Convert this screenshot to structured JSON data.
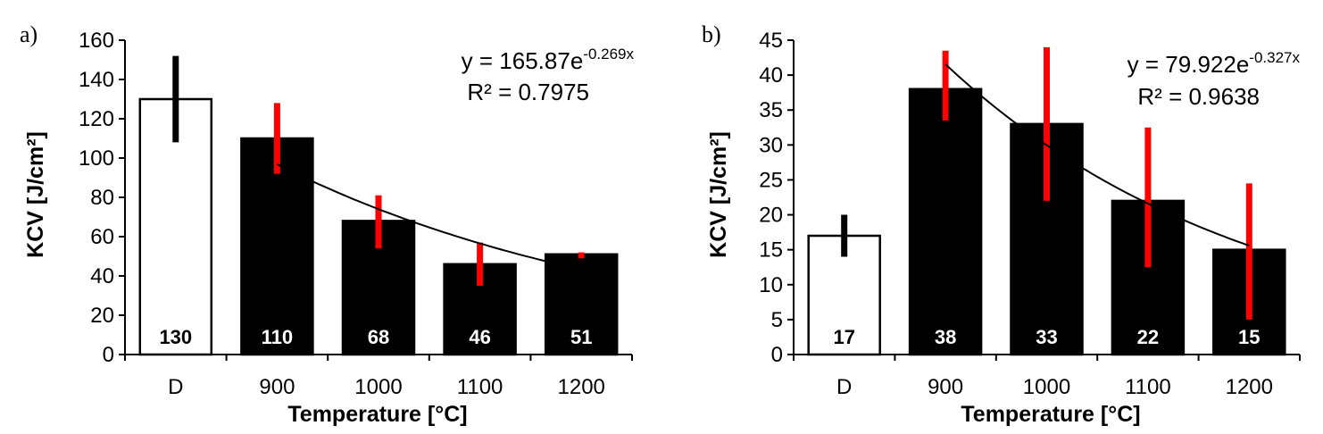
{
  "chart_data": [
    {
      "panel_label": "a)",
      "type": "bar",
      "categories": [
        "D",
        "900",
        "1000",
        "1100",
        "1200"
      ],
      "values": [
        130,
        110,
        68,
        46,
        51
      ],
      "value_labels": [
        "130",
        "110",
        "68",
        "46",
        "51"
      ],
      "error_low": [
        108,
        92,
        54,
        35,
        49
      ],
      "error_high": [
        152,
        128,
        81,
        57,
        52
      ],
      "bar_fill": [
        "#ffffff",
        "#000000",
        "#000000",
        "#000000",
        "#000000"
      ],
      "error_color": [
        "#000000",
        "#ff0000",
        "#ff0000",
        "#ff0000",
        "#ff0000"
      ],
      "label_color": [
        "#000000",
        "#ffffff",
        "#ffffff",
        "#ffffff",
        "#ffffff"
      ],
      "trend": {
        "a": 165.87,
        "b": -0.269,
        "from_index": 1,
        "to_index": 4
      },
      "equation": {
        "prefix": "y = 165.87e",
        "exponent": "-0.269x",
        "r2": "R² = 0.7975"
      },
      "ylim": [
        0,
        160
      ],
      "yticks": [
        "0",
        "20",
        "40",
        "60",
        "80",
        "100",
        "120",
        "140",
        "160"
      ],
      "ylabel": "KCV [J/cm²]",
      "xlabel": "Temperature [°C]",
      "grid": false
    },
    {
      "panel_label": "b)",
      "type": "bar",
      "categories": [
        "D",
        "900",
        "1000",
        "1100",
        "1200"
      ],
      "values": [
        17,
        38,
        33,
        22,
        15
      ],
      "value_labels": [
        "17",
        "38",
        "33",
        "22",
        "15"
      ],
      "error_low": [
        14,
        33.5,
        22,
        12.5,
        5
      ],
      "error_high": [
        20,
        43.5,
        44,
        32.5,
        24.5
      ],
      "bar_fill": [
        "#ffffff",
        "#000000",
        "#000000",
        "#000000",
        "#000000"
      ],
      "error_color": [
        "#000000",
        "#ff0000",
        "#ff0000",
        "#ff0000",
        "#ff0000"
      ],
      "label_color": [
        "#000000",
        "#ffffff",
        "#ffffff",
        "#ffffff",
        "#ffffff"
      ],
      "trend": {
        "a": 79.922,
        "b": -0.327,
        "from_index": 1,
        "to_index": 4
      },
      "equation": {
        "prefix": "y = 79.922e",
        "exponent": "-0.327x",
        "r2": "R² = 0.9638"
      },
      "ylim": [
        0,
        45
      ],
      "yticks": [
        "0",
        "5",
        "10",
        "15",
        "20",
        "25",
        "30",
        "35",
        "40",
        "45"
      ],
      "ylabel": "KCV [J/cm²]",
      "xlabel": "Temperature [°C]",
      "grid": false
    }
  ]
}
